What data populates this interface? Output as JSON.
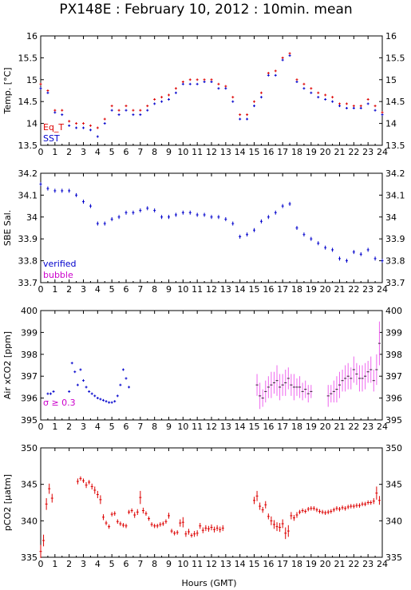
{
  "title": "PX148E : February 10, 2012 : 10min. mean",
  "xlabel": "Hours (GMT)",
  "xticks": [
    "0",
    "1",
    "2",
    "3",
    "4",
    "5",
    "6",
    "7",
    "8",
    "9",
    "10",
    "11",
    "12",
    "13",
    "14",
    "15",
    "16",
    "17",
    "18",
    "19",
    "20",
    "21",
    "22",
    "23",
    "24"
  ],
  "colors": {
    "eq_t": "#dd0000",
    "sst": "#0000cc",
    "verified": "#0000cc",
    "bubble": "#cc00cc",
    "sigma": "#ee66ee",
    "air": "#0000cc",
    "pco2": "#dd0000"
  },
  "legend": {
    "eq_t": "Eq_T",
    "sst": "SST",
    "verified": "verified",
    "bubble": "bubble",
    "sigma": "σ ≥ 0.3"
  },
  "chart_data": [
    {
      "type": "scatter",
      "ylabel": "Temp. [°C]",
      "ylim": [
        13.5,
        16
      ],
      "yticks": [
        "13.5",
        "14",
        "14.5",
        "15",
        "15.5",
        "16"
      ],
      "x": [
        0,
        0.5,
        1,
        1.5,
        2,
        2.5,
        3,
        3.5,
        4,
        4.5,
        5,
        5.5,
        6,
        6.5,
        7,
        7.5,
        8,
        8.5,
        9,
        9.5,
        10,
        10.5,
        11,
        11.5,
        12,
        12.5,
        13,
        13.5,
        14,
        14.5,
        15,
        15.5,
        16,
        16.5,
        17,
        17.5,
        18,
        18.5,
        19,
        19.5,
        20,
        20.5,
        21,
        21.5,
        22,
        22.5,
        23,
        23.5,
        24
      ],
      "series": [
        {
          "name": "Eq_T",
          "values": [
            14.9,
            14.75,
            14.3,
            14.3,
            14.05,
            14.0,
            14.0,
            13.95,
            13.9,
            14.1,
            14.4,
            14.3,
            14.4,
            14.3,
            14.3,
            14.4,
            14.55,
            14.6,
            14.65,
            14.8,
            14.95,
            15.0,
            15.0,
            15.0,
            15.0,
            14.9,
            14.85,
            14.6,
            14.2,
            14.2,
            14.5,
            14.7,
            15.15,
            15.2,
            15.5,
            15.6,
            15.0,
            14.9,
            14.8,
            14.7,
            14.65,
            14.6,
            14.45,
            14.45,
            14.4,
            14.4,
            14.55,
            14.4,
            14.25
          ]
        },
        {
          "name": "SST",
          "values": [
            14.8,
            14.7,
            14.25,
            14.2,
            13.95,
            13.9,
            13.9,
            13.85,
            13.7,
            14.0,
            14.3,
            14.2,
            14.3,
            14.2,
            14.2,
            14.3,
            14.45,
            14.5,
            14.55,
            14.7,
            14.9,
            14.9,
            14.9,
            14.95,
            14.95,
            14.8,
            14.8,
            14.5,
            14.1,
            14.1,
            14.4,
            14.6,
            15.1,
            15.1,
            15.45,
            15.55,
            14.95,
            14.8,
            14.7,
            14.6,
            14.55,
            14.5,
            14.4,
            14.35,
            14.35,
            14.35,
            14.45,
            14.3,
            14.2
          ]
        }
      ]
    },
    {
      "type": "scatter",
      "ylabel": "SBE Sal.",
      "ylim": [
        33.7,
        34.2
      ],
      "yticks": [
        "33.7",
        "33.8",
        "33.9",
        "34",
        "34.1",
        "34.2"
      ],
      "x": [
        0,
        0.5,
        1,
        1.5,
        2,
        2.5,
        3,
        3.5,
        4,
        4.5,
        5,
        5.5,
        6,
        6.5,
        7,
        7.5,
        8,
        8.5,
        9,
        9.5,
        10,
        10.5,
        11,
        11.5,
        12,
        12.5,
        13,
        13.5,
        14,
        14.5,
        15,
        15.5,
        16,
        16.5,
        17,
        17.5,
        18,
        18.5,
        19,
        19.5,
        20,
        20.5,
        21,
        21.5,
        22,
        22.5,
        23,
        23.5,
        24
      ],
      "series": [
        {
          "name": "verified",
          "values": [
            34.15,
            34.13,
            34.12,
            34.12,
            34.12,
            34.1,
            34.07,
            34.05,
            33.97,
            33.97,
            33.99,
            34.0,
            34.02,
            34.02,
            34.03,
            34.04,
            34.03,
            34.0,
            34.0,
            34.01,
            34.02,
            34.02,
            34.01,
            34.01,
            34.0,
            34.0,
            33.99,
            33.97,
            33.91,
            33.92,
            33.94,
            33.98,
            34.0,
            34.02,
            34.05,
            34.06,
            33.95,
            33.92,
            33.9,
            33.88,
            33.86,
            33.85,
            33.81,
            33.8,
            33.84,
            33.83,
            33.85,
            33.81,
            33.8
          ]
        }
      ]
    },
    {
      "type": "scatter",
      "ylabel": "Air xCO2 [ppm]",
      "ylim": [
        395,
        400
      ],
      "yticks": [
        "395",
        "396",
        "397",
        "398",
        "399",
        "400"
      ],
      "series": [
        {
          "name": "air",
          "x": [
            0.5,
            0.7,
            0.9,
            2.0,
            2.2,
            2.4,
            2.6,
            2.8,
            3.0,
            3.2,
            3.4,
            3.6,
            3.8,
            4.0,
            4.2,
            4.4,
            4.6,
            4.8,
            5.0,
            5.2,
            5.4,
            5.6,
            5.8,
            6.0,
            6.2
          ],
          "values": [
            396.2,
            396.2,
            396.3,
            396.3,
            397.6,
            397.2,
            396.6,
            397.3,
            396.8,
            396.5,
            396.3,
            396.2,
            396.1,
            396.0,
            395.95,
            395.9,
            395.85,
            395.8,
            395.8,
            395.85,
            396.1,
            396.6,
            397.3,
            396.9,
            396.5
          ]
        },
        {
          "name": "σ ≥ 0.3",
          "x": [
            15.2,
            15.4,
            15.6,
            15.8,
            16.0,
            16.2,
            16.4,
            16.6,
            16.8,
            17.0,
            17.2,
            17.4,
            17.6,
            17.8,
            18.0,
            18.2,
            18.4,
            18.6,
            18.8,
            19.0,
            20.2,
            20.4,
            20.6,
            20.8,
            21.0,
            21.2,
            21.4,
            21.6,
            21.8,
            22.0,
            22.2,
            22.4,
            22.6,
            22.8,
            23.0,
            23.2,
            23.4,
            23.6,
            23.8
          ],
          "values": [
            396.6,
            396.1,
            396.0,
            396.3,
            396.5,
            396.6,
            396.7,
            396.8,
            396.5,
            396.6,
            396.7,
            396.9,
            396.6,
            396.5,
            396.5,
            396.5,
            396.3,
            396.4,
            396.2,
            396.3,
            396.1,
            396.2,
            396.3,
            396.4,
            396.6,
            396.8,
            396.9,
            397.0,
            396.9,
            397.3,
            397.1,
            396.9,
            396.9,
            397.0,
            397.2,
            397.3,
            396.8,
            397.3,
            398.5
          ]
        }
      ],
      "sigma_err": [
        0,
        0,
        0,
        0,
        0,
        0,
        0,
        0,
        0,
        0,
        0,
        0,
        0,
        0,
        0,
        0,
        0,
        0,
        0,
        0,
        0,
        0,
        0,
        0,
        0,
        0,
        0.6,
        0.4,
        0.5,
        0.5,
        0.6,
        0.5,
        0.7,
        0.6,
        0.5,
        0.6,
        0.5,
        0.5,
        0.6,
        0.4,
        0.5,
        0.4,
        0.4,
        0.4,
        0.3,
        0.5,
        0.4,
        0.5,
        0.6,
        0.6,
        0.5,
        0.6,
        0.6,
        0.5,
        0.6,
        0.5,
        0.6,
        0.6,
        0.6,
        0.5,
        0.6,
        0.5,
        0.7,
        1.0
      ]
    },
    {
      "type": "scatter",
      "ylabel": "pCO2 [µatm]",
      "ylim": [
        335,
        350
      ],
      "yticks": [
        "335",
        "340",
        "345",
        "350"
      ],
      "series": [
        {
          "name": "pCO2",
          "x": [
            0,
            0.2,
            0.4,
            0.6,
            0.8,
            2.6,
            2.8,
            3.0,
            3.2,
            3.4,
            3.6,
            3.8,
            4.0,
            4.2,
            4.4,
            4.6,
            4.8,
            5.0,
            5.2,
            5.4,
            5.6,
            5.8,
            6.0,
            6.2,
            6.4,
            6.6,
            6.8,
            7.0,
            7.2,
            7.4,
            7.6,
            7.8,
            8.0,
            8.2,
            8.4,
            8.6,
            8.8,
            9.0,
            9.2,
            9.4,
            9.6,
            9.8,
            10.0,
            10.2,
            10.4,
            10.6,
            10.8,
            11.0,
            11.2,
            11.4,
            11.6,
            11.8,
            12.0,
            12.2,
            12.4,
            12.6,
            12.8,
            15.0,
            15.2,
            15.4,
            15.6,
            15.8,
            16.0,
            16.2,
            16.4,
            16.6,
            16.8,
            17.0,
            17.2,
            17.4,
            17.6,
            17.8,
            18.0,
            18.2,
            18.4,
            18.6,
            18.8,
            19.0,
            19.2,
            19.4,
            19.6,
            19.8,
            20.0,
            20.2,
            20.4,
            20.6,
            20.8,
            21.0,
            21.2,
            21.4,
            21.6,
            21.8,
            22.0,
            22.2,
            22.4,
            22.6,
            22.8,
            23.0,
            23.2,
            23.4,
            23.6,
            23.8
          ],
          "values": [
            335.8,
            337.3,
            342.3,
            344.4,
            343.1,
            345.4,
            345.8,
            345.5,
            344.9,
            345.3,
            344.7,
            344.2,
            343.6,
            342.9,
            340.5,
            339.7,
            339.2,
            340.9,
            341.0,
            339.9,
            339.6,
            339.4,
            339.3,
            341.2,
            341.4,
            340.8,
            341.2,
            343.2,
            341.4,
            341.0,
            340.3,
            339.5,
            339.3,
            339.3,
            339.5,
            339.6,
            339.9,
            340.7,
            338.6,
            338.3,
            338.4,
            339.7,
            339.8,
            338.2,
            338.5,
            338.0,
            338.2,
            338.3,
            339.3,
            338.7,
            339.0,
            338.9,
            339.1,
            338.8,
            339.0,
            338.8,
            339.0,
            342.8,
            343.4,
            342.0,
            341.5,
            342.2,
            340.6,
            340.0,
            339.5,
            339.2,
            339.1,
            339.6,
            338.3,
            338.6,
            340.7,
            340.4,
            340.8,
            341.2,
            341.4,
            341.3,
            341.6,
            341.7,
            341.7,
            341.5,
            341.3,
            341.2,
            341.1,
            341.2,
            341.3,
            341.5,
            341.7,
            341.6,
            341.8,
            341.7,
            341.9,
            342.0,
            342.0,
            342.1,
            342.1,
            342.3,
            342.3,
            342.5,
            342.5,
            342.7,
            343.8,
            342.8
          ]
        }
      ],
      "err": [
        0.9,
        0.8,
        0.8,
        0.7,
        0.6,
        0.4,
        0.3,
        0.3,
        0.4,
        0.3,
        0.4,
        0.5,
        0.5,
        0.6,
        0.4,
        0.3,
        0.3,
        0.3,
        0.3,
        0.3,
        0.3,
        0.3,
        0.3,
        0.3,
        0.3,
        0.4,
        0.4,
        0.9,
        0.4,
        0.3,
        0.3,
        0.3,
        0.3,
        0.3,
        0.3,
        0.3,
        0.3,
        0.4,
        0.3,
        0.3,
        0.3,
        0.5,
        0.7,
        0.4,
        0.4,
        0.3,
        0.4,
        0.4,
        0.4,
        0.4,
        0.4,
        0.4,
        0.4,
        0.4,
        0.4,
        0.4,
        0.4,
        0.5,
        0.7,
        0.5,
        0.4,
        0.5,
        0.4,
        0.6,
        0.6,
        0.6,
        0.6,
        0.6,
        0.8,
        0.8,
        0.5,
        0.4,
        0.4,
        0.3,
        0.3,
        0.3,
        0.3,
        0.3,
        0.3,
        0.3,
        0.3,
        0.3,
        0.3,
        0.3,
        0.3,
        0.3,
        0.3,
        0.3,
        0.3,
        0.3,
        0.3,
        0.3,
        0.3,
        0.3,
        0.3,
        0.3,
        0.3,
        0.3,
        0.3,
        0.4,
        0.9,
        0.6
      ]
    }
  ]
}
